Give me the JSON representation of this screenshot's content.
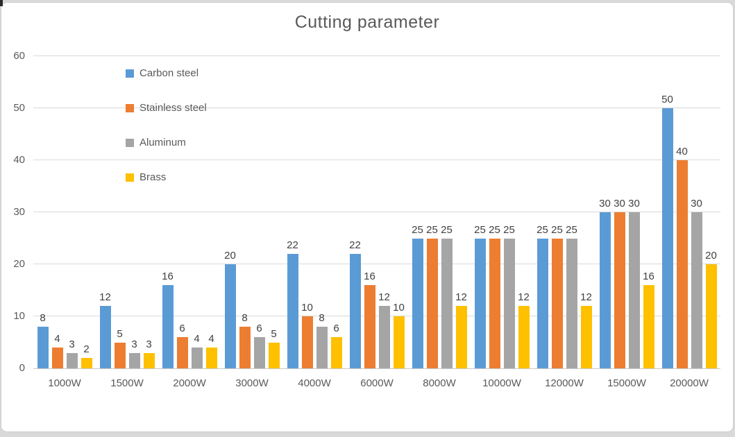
{
  "chart_data": {
    "type": "bar",
    "title": "Cutting parameter",
    "categories": [
      "1000W",
      "1500W",
      "2000W",
      "3000W",
      "4000W",
      "6000W",
      "8000W",
      "10000W",
      "12000W",
      "15000W",
      "20000W"
    ],
    "series": [
      {
        "name": "Carbon steel",
        "color": "#5B9BD5",
        "values": [
          8,
          12,
          16,
          20,
          22,
          22,
          25,
          25,
          25,
          30,
          50
        ]
      },
      {
        "name": "Stainless steel",
        "color": "#ED7D31",
        "values": [
          4,
          5,
          6,
          8,
          10,
          16,
          25,
          25,
          25,
          30,
          40
        ]
      },
      {
        "name": "Aluminum",
        "color": "#A5A5A5",
        "values": [
          3,
          3,
          4,
          6,
          8,
          12,
          25,
          25,
          25,
          30,
          30
        ]
      },
      {
        "name": "Brass",
        "color": "#FFC000",
        "values": [
          2,
          3,
          4,
          5,
          6,
          10,
          12,
          12,
          12,
          16,
          20
        ]
      }
    ],
    "ylim": [
      0,
      60
    ],
    "ytick_step": 10,
    "ytick_labels": [
      "0",
      "10",
      "20",
      "30",
      "40",
      "50",
      "60"
    ],
    "grid": true,
    "data_labels": true,
    "legend_position": "inside-top-left"
  },
  "colors": {
    "page_background": "#d9d9d9",
    "chart_background": "#ffffff",
    "frame_border": "#cfcfcf",
    "gridline": "#d9d9d9",
    "axis_line": "#c9c9c9",
    "title_text": "#595959",
    "axis_text": "#595959",
    "legend_text": "#595959",
    "data_label_text": "#404040"
  }
}
